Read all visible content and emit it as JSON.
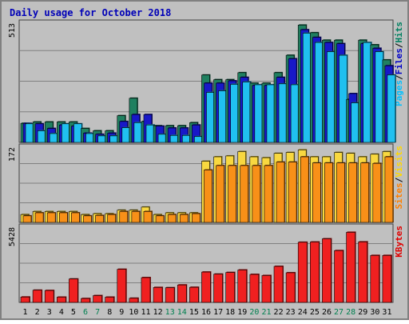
{
  "chart_data": {
    "type": "bar",
    "title": "Daily usage for October 2018",
    "categories": [
      "1",
      "2",
      "3",
      "4",
      "5",
      "6",
      "7",
      "8",
      "9",
      "10",
      "11",
      "12",
      "13",
      "14",
      "15",
      "16",
      "17",
      "18",
      "19",
      "20",
      "21",
      "22",
      "23",
      "24",
      "25",
      "26",
      "27",
      "28",
      "29",
      "30",
      "31"
    ],
    "weekend_days": [
      "6",
      "7",
      "13",
      "14",
      "20",
      "21",
      "27",
      "28"
    ],
    "panels": [
      {
        "id": "top",
        "max_label": "513",
        "ylim": [
          0,
          513
        ],
        "grid": true,
        "legend_words": [
          {
            "text": "Pages",
            "color": "#00c0ff"
          },
          {
            "text": "/",
            "color": "#000000"
          },
          {
            "text": "Files",
            "color": "#0000c8"
          },
          {
            "text": "/",
            "color": "#000000"
          },
          {
            "text": "Hits",
            "color": "#008060"
          }
        ],
        "series": [
          {
            "name": "Hits",
            "color": "#208060",
            "values": [
              82,
              88,
              88,
              88,
              88,
              60,
              50,
              50,
              115,
              190,
              90,
              72,
              72,
              72,
              85,
              290,
              270,
              270,
              300,
              255,
              255,
              300,
              375,
              505,
              472,
              440,
              440,
              185,
              440,
              420,
              355
            ]
          },
          {
            "name": "Files",
            "color": "#1818c8",
            "values": [
              82,
              80,
              60,
              75,
              70,
              40,
              35,
              40,
              90,
              120,
              120,
              70,
              62,
              62,
              75,
              255,
              255,
              265,
              280,
              245,
              245,
              280,
              360,
              485,
              452,
              430,
              425,
              210,
              425,
              405,
              330
            ]
          },
          {
            "name": "Pages",
            "color": "#20c0f0",
            "values": [
              80,
              50,
              38,
              80,
              80,
              38,
              28,
              28,
              63,
              85,
              75,
              35,
              30,
              30,
              25,
              215,
              222,
              250,
              260,
              248,
              248,
              252,
              248,
              470,
              430,
              390,
              375,
              170,
              430,
              390,
              290
            ]
          }
        ]
      },
      {
        "id": "middle",
        "max_label": "172",
        "ylim": [
          0,
          172
        ],
        "grid": true,
        "legend_words": [
          {
            "text": "Sites",
            "color": "#ff8000"
          },
          {
            "text": "/",
            "color": "#000000"
          },
          {
            "text": "Visits",
            "color": "#ffd800"
          }
        ],
        "series": [
          {
            "name": "Visits",
            "color": "#f8d840",
            "values": [
              18,
              25,
              25,
              25,
              25,
              18,
              20,
              20,
              28,
              28,
              35,
              18,
              22,
              22,
              22,
              140,
              150,
              152,
              162,
              150,
              148,
              158,
              160,
              166,
              150,
              150,
              160,
              158,
              150,
              156,
              162
            ]
          },
          {
            "name": "Sites",
            "color": "#f89018",
            "values": [
              15,
              22,
              22,
              22,
              22,
              15,
              16,
              18,
              25,
              25,
              25,
              15,
              18,
              18,
              20,
              120,
              130,
              130,
              130,
              130,
              130,
              138,
              138,
              150,
              136,
              136,
              136,
              136,
              136,
              135,
              150
            ]
          }
        ]
      },
      {
        "id": "bottom",
        "max_label": "5428",
        "ylim": [
          0,
          5428
        ],
        "grid": true,
        "legend_words": [
          {
            "text": "KBytes",
            "color": "#e00000"
          }
        ],
        "series": [
          {
            "name": "KBytes",
            "color": "#f02020",
            "values": [
              390,
              880,
              860,
              380,
              1690,
              280,
              490,
              380,
              2390,
              300,
              1790,
              1080,
              1060,
              1260,
              1090,
              2190,
              2040,
              2160,
              2340,
              2020,
              1940,
              2600,
              2140,
              4340,
              4360,
              4590,
              3740,
              5060,
              4370,
              3390,
              3390
            ]
          }
        ]
      }
    ]
  }
}
